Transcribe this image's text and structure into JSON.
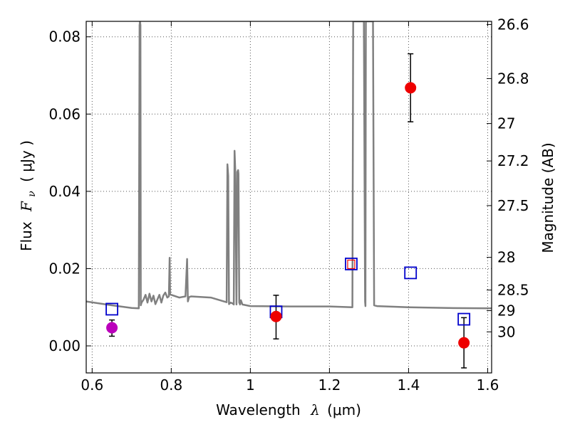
{
  "chart_data": {
    "type": "scatter",
    "xlabel": "Wavelength",
    "xlabel_symbol": "λ",
    "xlabel_unit": "(μm)",
    "ylabel": "Flux",
    "ylabel_symbol": "F",
    "ylabel_subscript": "ν",
    "ylabel_unit": "( μJy )",
    "y2label": "Magnitude (AB)",
    "xlim": [
      0.585,
      1.61
    ],
    "ylim": [
      -0.007,
      0.084
    ],
    "grid": true,
    "grid_style": "dotted",
    "x_ticks": [
      {
        "value": 0.6,
        "label": "0.6"
      },
      {
        "value": 0.8,
        "label": "0.8"
      },
      {
        "value": 1.0,
        "label": "1"
      },
      {
        "value": 1.2,
        "label": "1.2"
      },
      {
        "value": 1.4,
        "label": "1.4"
      },
      {
        "value": 1.6,
        "label": "1.6"
      }
    ],
    "y_ticks": [
      {
        "value": 0.0,
        "label": "0.00"
      },
      {
        "value": 0.02,
        "label": "0.02"
      },
      {
        "value": 0.04,
        "label": "0.04"
      },
      {
        "value": 0.06,
        "label": "0.06"
      },
      {
        "value": 0.08,
        "label": "0.08"
      }
    ],
    "y2_ticks": [
      {
        "value": 26.6,
        "label": "26.6"
      },
      {
        "value": 26.8,
        "label": "26.8"
      },
      {
        "value": 27.0,
        "label": "27"
      },
      {
        "value": 27.2,
        "label": "27.2"
      },
      {
        "value": 27.5,
        "label": "27.5"
      },
      {
        "value": 28.0,
        "label": "28"
      },
      {
        "value": 28.5,
        "label": "28.5"
      },
      {
        "value": 29.0,
        "label": "29"
      },
      {
        "value": 30.0,
        "label": "30"
      }
    ],
    "y2_ab_zero_point_ujy": 3631000000,
    "template_spectrum": {
      "color": "#808080",
      "x": [
        0.585,
        0.65,
        0.7,
        0.718,
        0.72,
        0.721,
        0.722,
        0.723,
        0.725,
        0.73,
        0.735,
        0.74,
        0.745,
        0.75,
        0.755,
        0.76,
        0.765,
        0.77,
        0.775,
        0.78,
        0.785,
        0.79,
        0.794,
        0.796,
        0.797,
        0.8,
        0.82,
        0.836,
        0.84,
        0.842,
        0.845,
        0.85,
        0.9,
        0.94,
        0.942,
        0.944,
        0.946,
        0.95,
        0.955,
        0.958,
        0.96,
        0.962,
        0.965,
        0.967,
        0.969,
        0.97,
        0.972,
        0.974,
        0.976,
        0.98,
        1.0,
        1.1,
        1.2,
        1.258,
        1.26,
        1.27,
        1.28,
        1.285,
        1.287,
        1.29,
        1.291,
        1.292,
        1.297,
        1.3,
        1.31,
        1.313,
        1.32,
        1.4,
        1.5,
        1.61
      ],
      "y": [
        0.0115,
        0.0105,
        0.0098,
        0.0097,
        0.083,
        0.084,
        0.083,
        0.0105,
        0.0112,
        0.012,
        0.0132,
        0.0112,
        0.0135,
        0.0115,
        0.013,
        0.0108,
        0.012,
        0.0132,
        0.0112,
        0.013,
        0.0138,
        0.0125,
        0.0128,
        0.0228,
        0.0133,
        0.0132,
        0.0125,
        0.0128,
        0.0225,
        0.0115,
        0.0126,
        0.0128,
        0.0125,
        0.0113,
        0.047,
        0.044,
        0.0108,
        0.0112,
        0.011,
        0.0107,
        0.0505,
        0.045,
        0.0107,
        0.045,
        0.0455,
        0.0445,
        0.0112,
        0.0107,
        0.0118,
        0.0107,
        0.0103,
        0.0102,
        0.0102,
        0.01,
        0.084,
        0.084,
        0.084,
        0.084,
        0.084,
        0.0115,
        0.0103,
        0.084,
        0.084,
        0.084,
        0.084,
        0.0105,
        0.0103,
        0.01,
        0.0098,
        0.0097
      ]
    },
    "filter_points": {
      "color": "#0000cc",
      "marker": "open-square",
      "x": [
        0.65,
        1.065,
        1.255,
        1.405,
        1.54
      ],
      "y": [
        0.0095,
        0.0088,
        0.0212,
        0.0189,
        0.0069
      ]
    },
    "observed_points": {
      "marker": "filled-circle",
      "points": [
        {
          "x": 0.65,
          "y": 0.0047,
          "yerr": [
            0.0022,
            0.002
          ],
          "color": "#bb00bb"
        },
        {
          "x": 1.065,
          "y": 0.0076,
          "yerr": [
            0.0058,
            0.0055
          ],
          "color": "#ee0000"
        },
        {
          "x": 1.405,
          "y": 0.0668,
          "yerr": [
            0.0088,
            0.0088
          ],
          "color": "#ee0000"
        },
        {
          "x": 1.54,
          "y": 0.0008,
          "yerr": [
            0.0065,
            0.0065
          ],
          "color": "#ee0000"
        }
      ]
    },
    "upper_limit_box": {
      "color": "#ee0000",
      "marker": "open-square-small",
      "x": 1.255,
      "y": 0.0211
    },
    "errorbar_color": "#000000",
    "axes_color": "#000000",
    "grid_color": "#555555"
  }
}
